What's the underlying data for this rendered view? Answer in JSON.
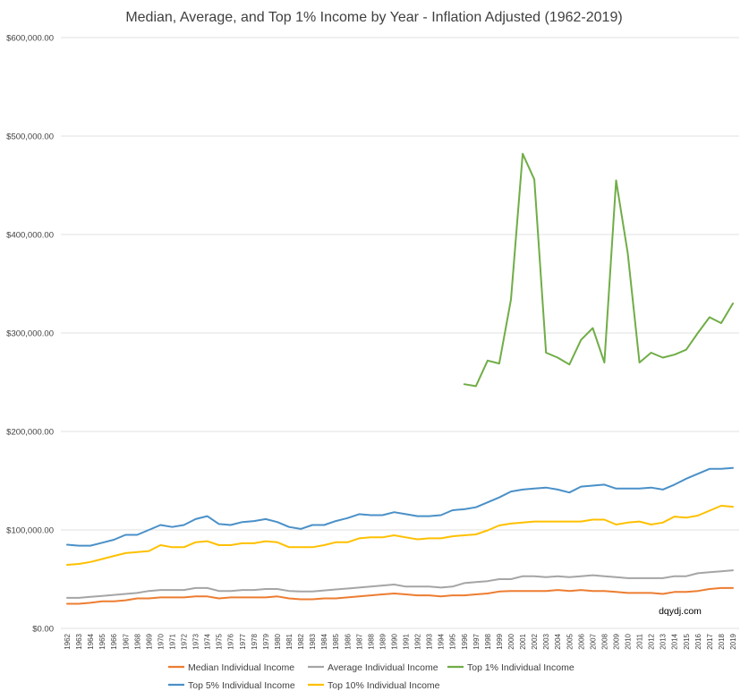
{
  "chart_data": {
    "type": "line",
    "title": "Median, Average, and Top 1% Income by Year - Inflation Adjusted (1962-2019)",
    "xlabel": "",
    "ylabel": "",
    "ylim": [
      0,
      600000
    ],
    "y_ticks": [
      "$0.00",
      "$100,000.00",
      "$200,000.00",
      "$300,000.00",
      "$400,000.00",
      "$500,000.00",
      "$600,000.00"
    ],
    "y_tick_values": [
      0,
      100000,
      200000,
      300000,
      400000,
      500000,
      600000
    ],
    "grid": true,
    "legend_position": "bottom",
    "annotation": "dqydj.com",
    "categories": [
      "1962",
      "1963",
      "1964",
      "1965",
      "1966",
      "1967",
      "1968",
      "1969",
      "1970",
      "1971",
      "1972",
      "1973",
      "1974",
      "1975",
      "1976",
      "1977",
      "1978",
      "1979",
      "1980",
      "1981",
      "1982",
      "1983",
      "1984",
      "1985",
      "1986",
      "1987",
      "1988",
      "1989",
      "1990",
      "1991",
      "1992",
      "1993",
      "1994",
      "1995",
      "1996",
      "1997",
      "1998",
      "1999",
      "2000",
      "2001",
      "2002",
      "2003",
      "2004",
      "2005",
      "2006",
      "2007",
      "2008",
      "2009",
      "2010",
      "2011",
      "2012",
      "2013",
      "2014",
      "2015",
      "2016",
      "2017",
      "2018",
      "2019"
    ],
    "series": [
      {
        "name": "Median Individual Income",
        "color": "#ed7d31",
        "values": [
          25000,
          25000,
          26000,
          27500,
          27500,
          28500,
          30500,
          30500,
          31500,
          31500,
          31500,
          32500,
          32500,
          30500,
          31500,
          31500,
          31500,
          31500,
          32500,
          30500,
          29500,
          29500,
          30500,
          30500,
          31500,
          32500,
          33500,
          34500,
          35500,
          34500,
          33500,
          33500,
          32500,
          33500,
          33500,
          34500,
          35500,
          37500,
          38000,
          38000,
          38000,
          38000,
          39000,
          38000,
          39000,
          38000,
          38000,
          37000,
          36000,
          36000,
          36000,
          35000,
          37000,
          37000,
          38000,
          40000,
          41000,
          41000
        ]
      },
      {
        "name": "Average Individual Income",
        "color": "#a5a5a5",
        "values": [
          31000,
          31000,
          32000,
          33000,
          34000,
          35000,
          36000,
          38000,
          39000,
          39000,
          39000,
          41000,
          41000,
          38000,
          38000,
          39000,
          39000,
          40000,
          40000,
          38000,
          37500,
          37500,
          38500,
          39500,
          40500,
          41500,
          42500,
          43500,
          44500,
          42500,
          42500,
          42500,
          41500,
          42500,
          46000,
          47000,
          48000,
          50000,
          50000,
          53000,
          53000,
          52000,
          53000,
          52000,
          53000,
          54000,
          53000,
          52000,
          51000,
          51000,
          51000,
          51000,
          53000,
          53000,
          56000,
          57000,
          58000,
          59000
        ]
      },
      {
        "name": "Top 1% Individual Income",
        "color": "#70ad47",
        "values": [
          null,
          null,
          null,
          null,
          null,
          null,
          null,
          null,
          null,
          null,
          null,
          null,
          null,
          null,
          null,
          null,
          null,
          null,
          null,
          null,
          null,
          null,
          null,
          null,
          null,
          null,
          null,
          null,
          null,
          null,
          null,
          null,
          null,
          null,
          248000,
          246000,
          272000,
          269000,
          334000,
          482000,
          456000,
          280000,
          275000,
          268000,
          293000,
          305000,
          270000,
          455000,
          381000,
          270000,
          280000,
          275000,
          278000,
          283000,
          300000,
          316000,
          310000,
          330000
        ]
      },
      {
        "name": "Top 5% Individual Income",
        "color": "#4a90c8",
        "values": [
          85000,
          84000,
          84000,
          87000,
          90000,
          95000,
          95000,
          100000,
          105000,
          103000,
          105000,
          111000,
          114000,
          106000,
          105000,
          108000,
          109000,
          111000,
          108000,
          103000,
          101000,
          105000,
          105000,
          109000,
          112000,
          116000,
          115000,
          115000,
          118000,
          116000,
          114000,
          114000,
          115000,
          120000,
          121000,
          123000,
          128000,
          133000,
          139000,
          141000,
          142000,
          143000,
          141000,
          138000,
          144000,
          145000,
          146000,
          142000,
          142000,
          142000,
          143000,
          141000,
          146000,
          152000,
          157000,
          162000,
          162000,
          163000
        ]
      },
      {
        "name": "Top 10% Individual Income",
        "color": "#ffc000",
        "values": [
          64500,
          65500,
          67500,
          70500,
          73500,
          76500,
          77500,
          78500,
          84500,
          82500,
          82500,
          87500,
          88500,
          84500,
          84500,
          86500,
          86500,
          88500,
          87500,
          82500,
          82500,
          82500,
          84500,
          87500,
          87500,
          91500,
          92500,
          92500,
          94500,
          92500,
          90500,
          91500,
          91500,
          93500,
          94500,
          95500,
          99500,
          104500,
          106500,
          107500,
          108500,
          108500,
          108500,
          108500,
          108500,
          110500,
          110500,
          105500,
          107500,
          108500,
          105500,
          107500,
          113500,
          112500,
          114500,
          119500,
          124500,
          123500
        ]
      }
    ]
  }
}
